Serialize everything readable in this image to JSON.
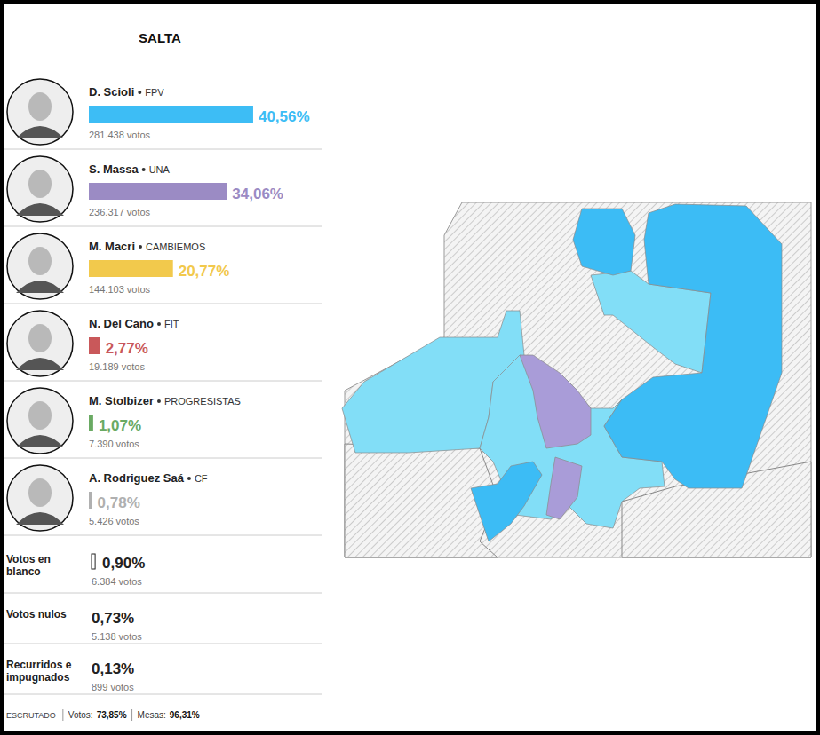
{
  "chart_data": {
    "type": "bar",
    "orientation": "horizontal",
    "title": "SALTA",
    "categories": [
      "D. Scioli",
      "S. Massa",
      "M. Macri",
      "N. Del Caño",
      "M. Stolbizer",
      "A. Rodriguez Saá"
    ],
    "parties": [
      "FPV",
      "UNA",
      "CAMBIEMOS",
      "FIT",
      "PROGRESISTAS",
      "CF"
    ],
    "values": [
      40.56,
      34.06,
      20.77,
      2.77,
      1.07,
      0.78
    ],
    "value_labels": [
      "40,56%",
      "34,06%",
      "20,77%",
      "2,77%",
      "1,07%",
      "0,78%"
    ],
    "votes": [
      281438,
      236317,
      144103,
      19189,
      7390,
      5426
    ],
    "votes_labels": [
      "281.438 votos",
      "236.317 votos",
      "144.103 votos",
      "19.189 votos",
      "7.390 votos",
      "5.426 votos"
    ],
    "colors": [
      "#3dbdf5",
      "#9b8bc4",
      "#f2c94c",
      "#c9585a",
      "#6aaa63",
      "#b0b0b0"
    ],
    "xlim": [
      0,
      100
    ],
    "data_labels": true,
    "tick_labels": false,
    "others": [
      {
        "label": "Votos en blanco",
        "value": 0.9,
        "value_label": "0,90%",
        "votes": 6384,
        "votes_label": "6.384 votos",
        "color": "#ffffff"
      },
      {
        "label": "Votos nulos",
        "value": 0.73,
        "value_label": "0,73%",
        "votes": 5138,
        "votes_label": "5.138 votos"
      },
      {
        "label": "Recurridos e impugnados",
        "value": 0.13,
        "value_label": "0,13%",
        "votes": 899,
        "votes_label": "899 votos"
      }
    ],
    "footer": {
      "label": "ESCRUTADO",
      "items": [
        {
          "label": "Votos:",
          "value": 73.85,
          "value_label": "73,85%"
        },
        {
          "label": "Mesas:",
          "value": 96.31,
          "value_label": "96,31%"
        }
      ]
    }
  }
}
